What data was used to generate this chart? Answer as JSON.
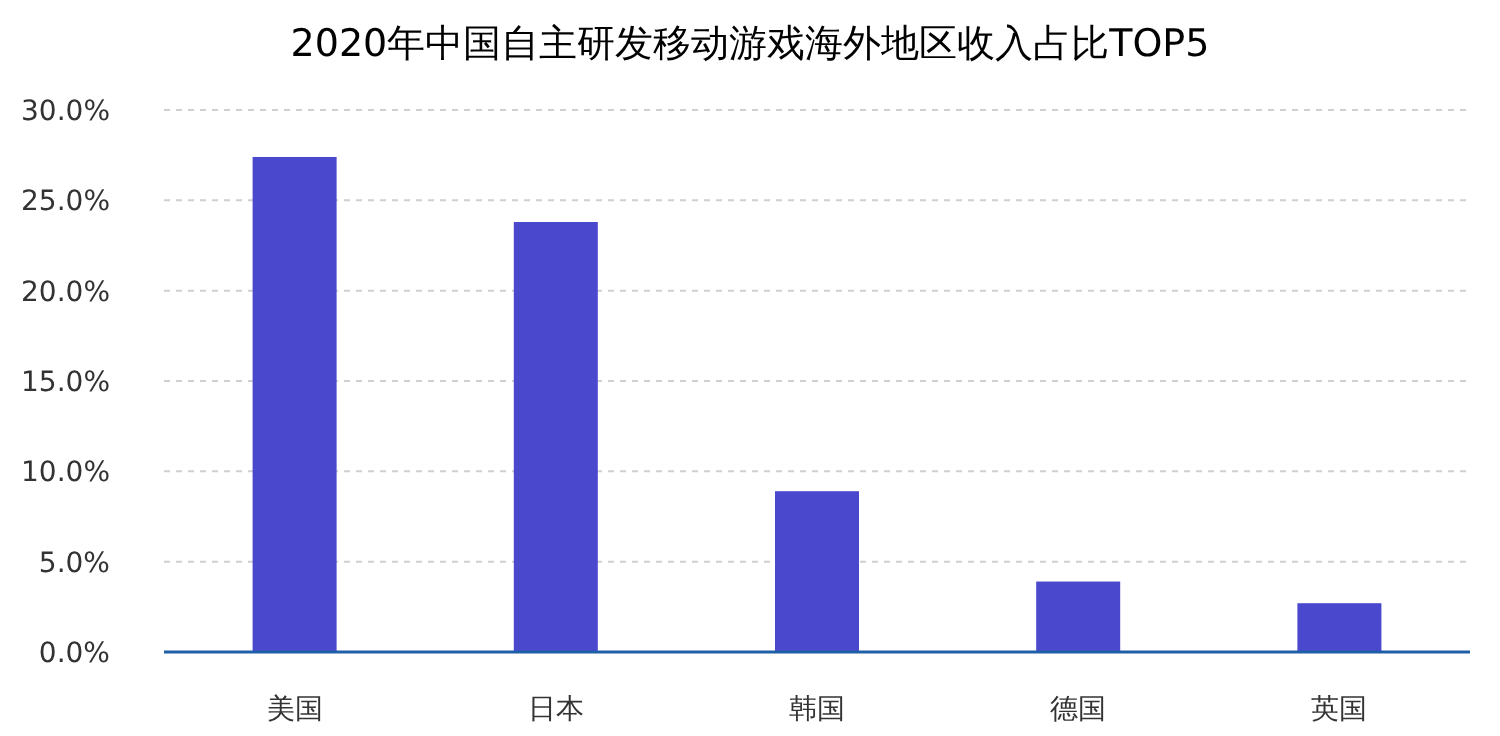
{
  "chart_data": {
    "type": "bar",
    "title": "2020年中国自主研发移动游戏海外地区收入占比TOP5",
    "categories": [
      "美国",
      "日本",
      "韩国",
      "德国",
      "英国"
    ],
    "values": [
      27.4,
      23.8,
      8.9,
      3.9,
      2.7
    ],
    "color": "#4a48cc",
    "ylim": [
      0,
      30
    ],
    "yticks": [
      {
        "value": 0,
        "label": "0.0%"
      },
      {
        "value": 5,
        "label": "5.0%"
      },
      {
        "value": 10,
        "label": "10.0%"
      },
      {
        "value": 15,
        "label": "15.0%"
      },
      {
        "value": 20,
        "label": "20.0%"
      },
      {
        "value": 25,
        "label": "25.0%"
      },
      {
        "value": 30,
        "label": "30.0%"
      }
    ],
    "grid": "y"
  }
}
